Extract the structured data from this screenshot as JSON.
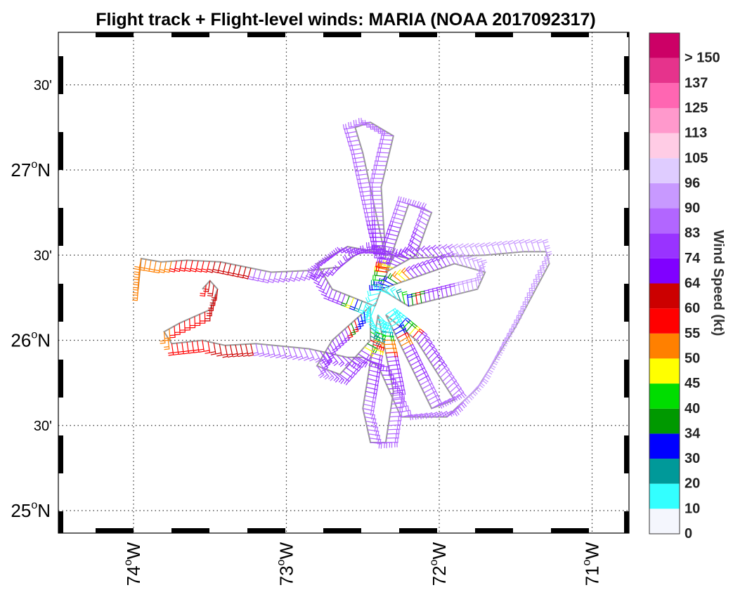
{
  "chart_data": {
    "type": "map",
    "title": "Flight track + Flight-level winds: MARIA (NOAA 2017092317)",
    "lon_range": [
      -74.45,
      -70.8
    ],
    "lat_range": [
      24.85,
      27.8
    ],
    "lat_ticks": [
      {
        "value": 25.0,
        "label": "25",
        "suffix": "N",
        "major": true
      },
      {
        "value": 25.5,
        "label": "30'",
        "major": false
      },
      {
        "value": 26.0,
        "label": "26",
        "suffix": "N",
        "major": true
      },
      {
        "value": 26.5,
        "label": "30'",
        "major": false
      },
      {
        "value": 27.0,
        "label": "27",
        "suffix": "N",
        "major": true
      },
      {
        "value": 27.5,
        "label": "30'",
        "major": false
      }
    ],
    "lon_ticks": [
      {
        "value": -74,
        "label": "74",
        "suffix": "W"
      },
      {
        "value": -73,
        "label": "73",
        "suffix": "W"
      },
      {
        "value": -72,
        "label": "72",
        "suffix": "W"
      },
      {
        "value": -71,
        "label": "71",
        "suffix": "W"
      }
    ],
    "grid": true,
    "colorbar": {
      "title": "Wind Speed (kt)",
      "levels": [
        {
          "label": "0",
          "color": "#f4f6fd"
        },
        {
          "label": "10",
          "color": "#33ffff"
        },
        {
          "label": "20",
          "color": "#009999"
        },
        {
          "label": "30",
          "color": "#0000ff"
        },
        {
          "label": "34",
          "color": "#009900"
        },
        {
          "label": "40",
          "color": "#00dd00"
        },
        {
          "label": "45",
          "color": "#ffff00"
        },
        {
          "label": "50",
          "color": "#ff8000"
        },
        {
          "label": "55",
          "color": "#ff0000"
        },
        {
          "label": "60",
          "color": "#cc0000"
        },
        {
          "label": "64",
          "color": "#8000ff"
        },
        {
          "label": "74",
          "color": "#9933ff"
        },
        {
          "label": "83",
          "color": "#b266ff"
        },
        {
          "label": "90",
          "color": "#c899ff"
        },
        {
          "label": "96",
          "color": "#dfccff"
        },
        {
          "label": "105",
          "color": "#ffcce5"
        },
        {
          "label": "113",
          "color": "#ff99cc"
        },
        {
          "label": "125",
          "color": "#ff66b2"
        },
        {
          "label": "137",
          "color": "#e6338c"
        },
        {
          "label": "> 150",
          "color": "#cc0066"
        }
      ]
    },
    "flight_track": [
      [
        -73.97,
        26.3
      ],
      [
        -73.95,
        26.48
      ],
      [
        -73.82,
        26.46
      ],
      [
        -73.65,
        26.47
      ],
      [
        -73.43,
        26.46
      ],
      [
        -73.1,
        26.4
      ],
      [
        -72.85,
        26.41
      ],
      [
        -72.65,
        26.43
      ],
      [
        -72.55,
        26.5
      ],
      [
        -72.4,
        26.55
      ],
      [
        -72.3,
        26.5
      ],
      [
        -72.2,
        26.48
      ],
      [
        -72.0,
        26.49
      ],
      [
        -71.7,
        26.5
      ],
      [
        -71.45,
        26.52
      ],
      [
        -71.3,
        26.52
      ],
      [
        -71.28,
        26.45
      ],
      [
        -71.5,
        26.08
      ],
      [
        -71.75,
        25.72
      ],
      [
        -71.95,
        25.55
      ],
      [
        -72.25,
        25.55
      ],
      [
        -72.4,
        25.85
      ],
      [
        -72.5,
        25.9
      ],
      [
        -72.6,
        25.9
      ],
      [
        -72.85,
        25.95
      ],
      [
        -73.2,
        25.98
      ],
      [
        -73.4,
        25.97
      ],
      [
        -73.55,
        26.0
      ],
      [
        -73.75,
        25.98
      ],
      [
        -73.8,
        26.05
      ],
      [
        -73.7,
        26.1
      ],
      [
        -73.5,
        26.18
      ],
      [
        -73.45,
        26.3
      ],
      [
        -73.5,
        26.35
      ],
      [
        -73.55,
        26.3
      ]
    ],
    "track_loops": [
      [
        [
          -72.35,
          26.48
        ],
        [
          -72.5,
          27.1
        ],
        [
          -72.55,
          27.25
        ],
        [
          -72.45,
          27.28
        ],
        [
          -72.3,
          27.2
        ],
        [
          -72.38,
          26.9
        ],
        [
          -72.35,
          26.48
        ]
      ],
      [
        [
          -72.35,
          26.4
        ],
        [
          -72.2,
          26.8
        ],
        [
          -72.05,
          26.75
        ],
        [
          -72.15,
          26.5
        ],
        [
          -72.35,
          26.4
        ]
      ],
      [
        [
          -72.38,
          26.3
        ],
        [
          -71.9,
          26.45
        ],
        [
          -71.7,
          26.4
        ],
        [
          -71.75,
          26.3
        ],
        [
          -72.2,
          26.2
        ],
        [
          -72.38,
          26.3
        ]
      ],
      [
        [
          -72.42,
          26.2
        ],
        [
          -72.3,
          26.5
        ],
        [
          -72.6,
          26.55
        ],
        [
          -72.8,
          26.45
        ],
        [
          -72.7,
          26.3
        ],
        [
          -72.42,
          26.2
        ]
      ],
      [
        [
          -72.45,
          26.2
        ],
        [
          -72.7,
          26.0
        ],
        [
          -72.8,
          25.85
        ],
        [
          -72.65,
          25.8
        ],
        [
          -72.45,
          26.0
        ],
        [
          -72.45,
          26.2
        ]
      ],
      [
        [
          -72.4,
          26.15
        ],
        [
          -72.5,
          25.6
        ],
        [
          -72.45,
          25.4
        ],
        [
          -72.35,
          25.4
        ],
        [
          -72.3,
          25.7
        ],
        [
          -72.4,
          26.15
        ]
      ],
      [
        [
          -72.35,
          26.15
        ],
        [
          -72.05,
          25.6
        ],
        [
          -71.9,
          25.65
        ],
        [
          -72.15,
          26.0
        ],
        [
          -72.35,
          26.15
        ]
      ]
    ]
  }
}
